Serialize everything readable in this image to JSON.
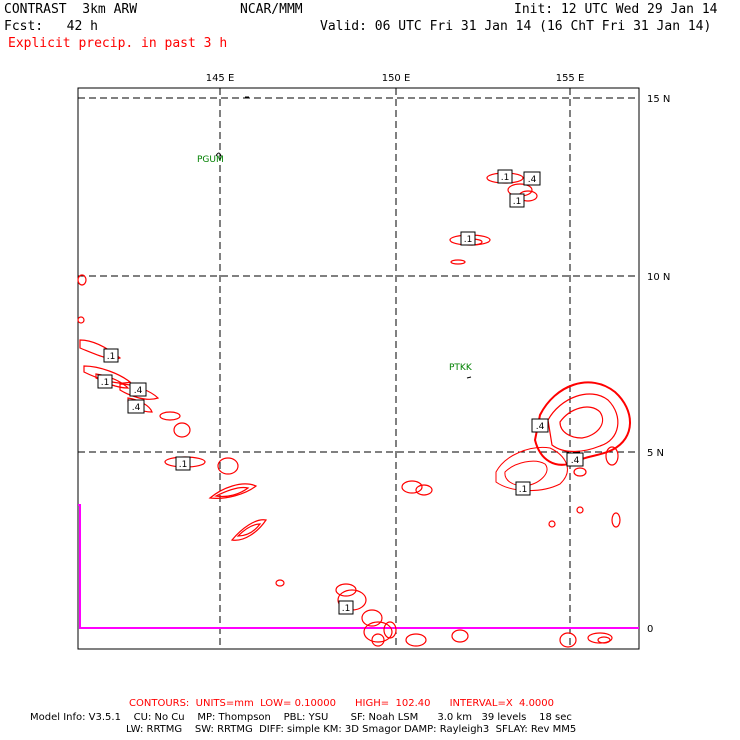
{
  "header": {
    "model": "CONTRAST  3km ARW",
    "org": "NCAR/MMM",
    "init": "Init: 12 UTC Wed 29 Jan 14",
    "fcst": "Fcst:   42 h",
    "valid": "Valid: 06 UTC Fri 31 Jan 14 (16 ChT Fri 31 Jan 14)",
    "field": "Explicit precip. in past 3 h"
  },
  "map": {
    "lon_labels": [
      "145 E",
      "150 E",
      "155 E"
    ],
    "lat_labels": [
      "15 N",
      "10 N",
      "5 N",
      "0"
    ],
    "stations": [
      "PGUM",
      "PTKK"
    ],
    "contour_labels": [
      ".1",
      ".4",
      ".1",
      ".1",
      ".1",
      ".1",
      ".4",
      ".4",
      ".1",
      ".4",
      ".4",
      ".1",
      ".1"
    ]
  },
  "footer": {
    "contours": "CONTOURS:  UNITS=mm  LOW= 0.10000      HIGH=  102.40      INTERVAL=X  4.0000",
    "model_info_1": "Model Info: V3.5.1    CU: No Cu    MP: Thompson    PBL: YSU       SF: Noah LSM      3.0 km   39 levels    18 sec",
    "model_info_2": "LW: RRTMG    SW: RRTMG  DIFF: simple KM: 3D Smagor DAMP: Rayleigh3  SFLAY: Rev MM5"
  },
  "colors": {
    "contour": "#ff0000",
    "station": "#008000",
    "boundary": "#ff00ff",
    "text_red": "#ff0000"
  }
}
